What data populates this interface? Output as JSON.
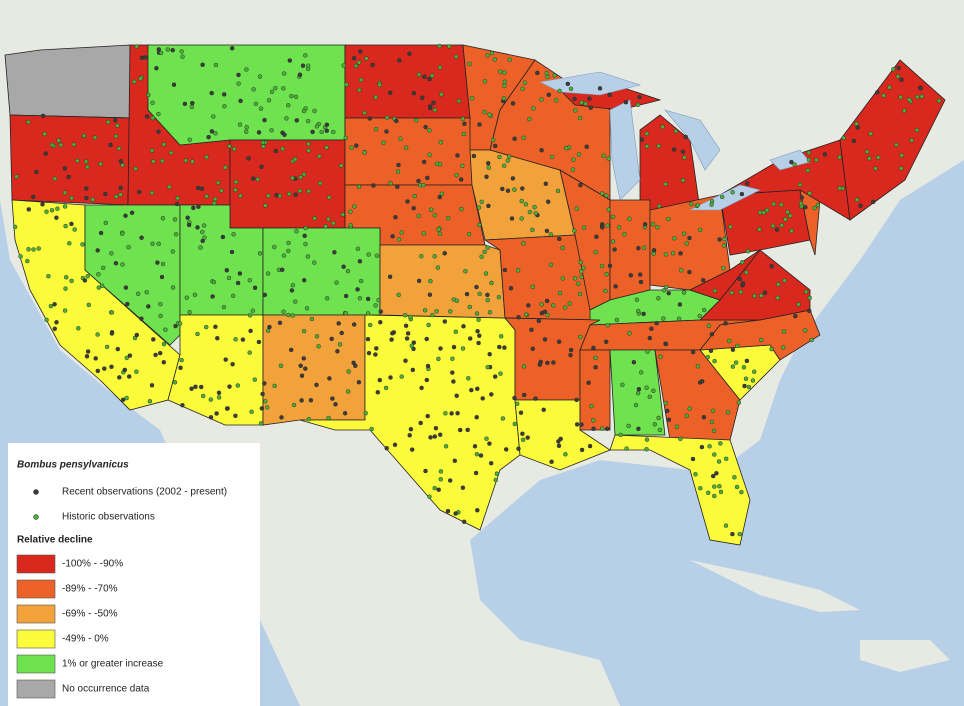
{
  "legend": {
    "species": "Bombus pensylvanicus",
    "observations": [
      {
        "label": "Recent observations (2002 - present)",
        "color": "#3c3c3c"
      },
      {
        "label": "Historic observations",
        "color": "#4caf3a"
      }
    ],
    "decline_title": "Relative decline",
    "classes": [
      {
        "label": "-100% - -90%",
        "color": "#d9291f"
      },
      {
        "label": "-89% - -70%",
        "color": "#ec6127"
      },
      {
        "label": "-69% - -50%",
        "color": "#f2a23a"
      },
      {
        "label": "-49% - 0%",
        "color": "#fbfb3c"
      },
      {
        "label": "1% or greater increase",
        "color": "#6fe34f"
      },
      {
        "label": "No occurrence data",
        "color": "#a8a8a8"
      }
    ]
  }
}
